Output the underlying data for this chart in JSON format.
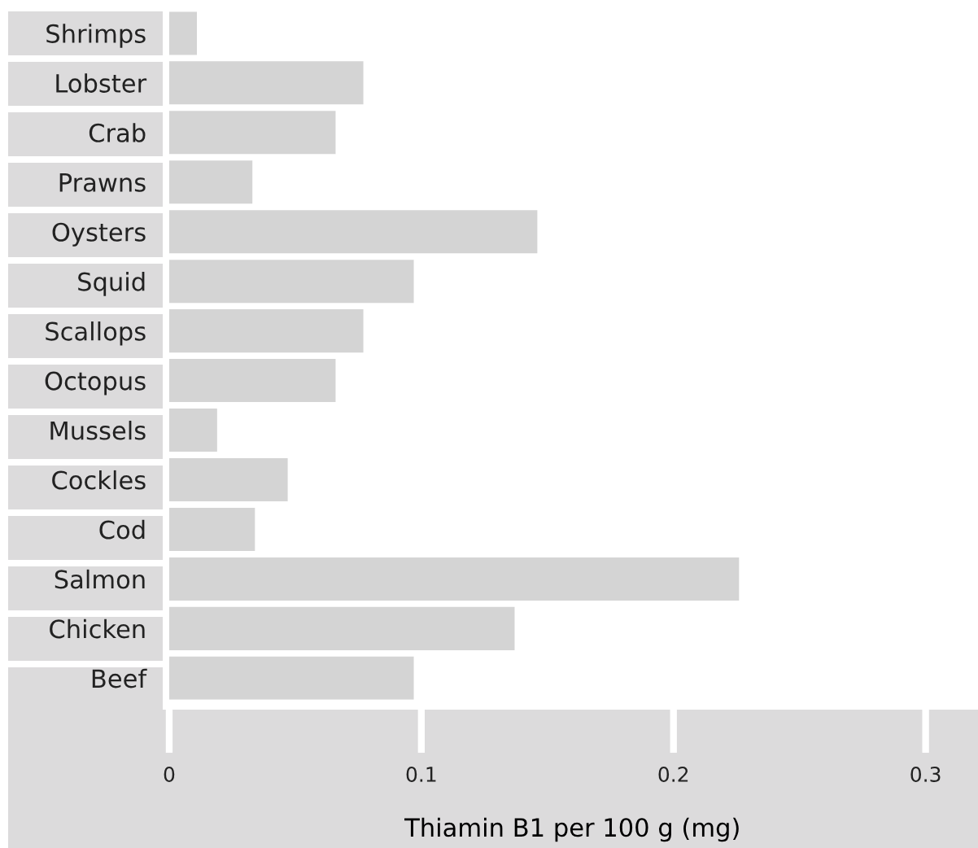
{
  "chart_data": {
    "type": "bar",
    "orientation": "horizontal",
    "xlabel": "Thiamin B1 per 100 g (mg)",
    "categories": [
      "Shrimps",
      "Lobster",
      "Crab",
      "Prawns",
      "Oysters",
      "Squid",
      "Scallops",
      "Octopus",
      "Mussels",
      "Cockles",
      "Cod",
      "Salmon",
      "Chicken",
      "Beef"
    ],
    "values": [
      0.011,
      0.077,
      0.066,
      0.033,
      0.146,
      0.097,
      0.077,
      0.066,
      0.019,
      0.047,
      0.034,
      0.226,
      0.137,
      0.097
    ],
    "color": "#d4d4d4",
    "xlim": [
      0,
      0.32
    ],
    "xticks": [
      0,
      0.1,
      0.2,
      0.3
    ],
    "grid": false,
    "legend": false
  }
}
